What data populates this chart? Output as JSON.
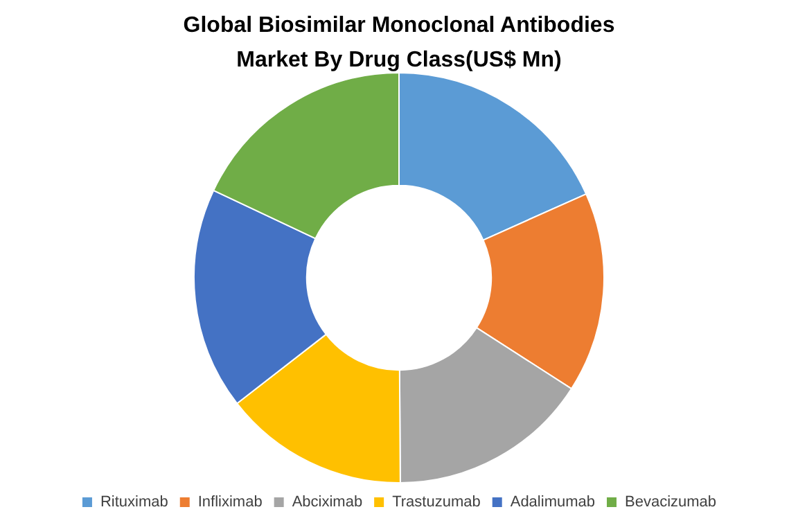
{
  "chart_data": {
    "type": "donut",
    "title": "Global Biosimilar Monoclonal Antibodies Market By Drug Class(US$ Mn)",
    "categories": [
      "Rituximab",
      "Infliximab",
      "Abciximab",
      "Trastuzumab",
      "Adalimumab",
      "Bevacizumab"
    ],
    "values": [
      18.3,
      15.8,
      15.8,
      14.6,
      17.5,
      18.0
    ],
    "colors": [
      "#5b9bd5",
      "#ed7d31",
      "#a5a5a5",
      "#ffc000",
      "#4472c4",
      "#70ad47"
    ],
    "legend": "bottom"
  }
}
